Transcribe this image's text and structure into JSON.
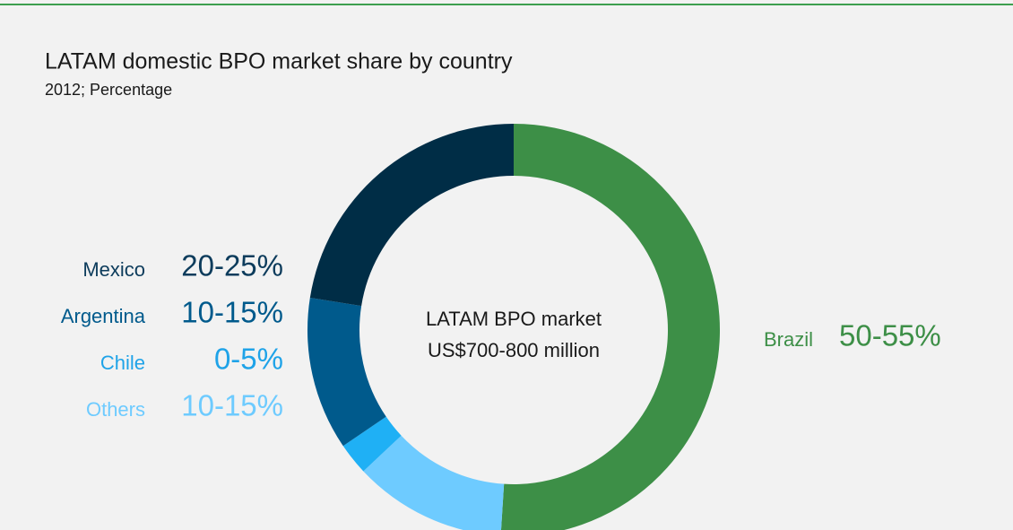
{
  "chart_data": {
    "type": "donut",
    "title": "LATAM domestic BPO market share by country",
    "subtitle": "2012; Percentage",
    "center_label": [
      "LATAM BPO market",
      "US$700-800 million"
    ],
    "categories": [
      "Brazil",
      "Others",
      "Chile",
      "Argentina",
      "Mexico"
    ],
    "values": [
      51,
      12,
      2.5,
      12,
      22.5
    ],
    "value_labels": [
      "50-55%",
      "10-15%",
      "0-5%",
      "10-15%",
      "20-25%"
    ],
    "colors": [
      "#3d8f47",
      "#6ecbff",
      "#1fb0f5",
      "#005a8c",
      "#002d46"
    ],
    "label_colors": [
      "#3d8f47",
      "#6ecbff",
      "#1fa3e8",
      "#005a8c",
      "#0d3c5c"
    ]
  }
}
